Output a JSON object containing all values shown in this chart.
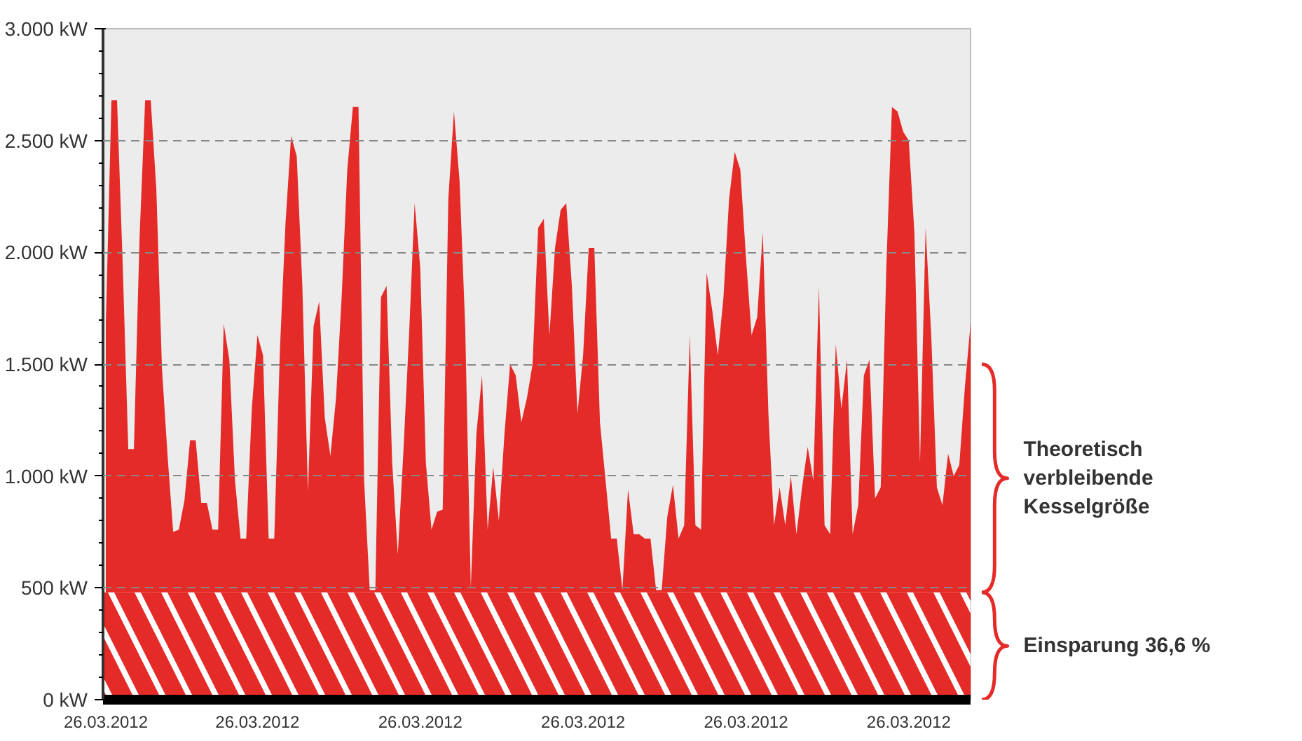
{
  "chart_data": {
    "type": "area",
    "color": "#e52b28",
    "categories": [
      "26.03.2012",
      null,
      null,
      null,
      null,
      null,
      null,
      null,
      null,
      null,
      null,
      null,
      null,
      null,
      null,
      null,
      null,
      null,
      null,
      null,
      null,
      null,
      null,
      null,
      null,
      null,
      null,
      "26.03.2012",
      null,
      null,
      null,
      null,
      null,
      null,
      null,
      null,
      null,
      null,
      null,
      null,
      null,
      null,
      null,
      null,
      null,
      null,
      null,
      null,
      null,
      null,
      null,
      null,
      null,
      null,
      null,
      null,
      "26.03.2012",
      null,
      null,
      null,
      null,
      null,
      null,
      null,
      null,
      null,
      null,
      null,
      null,
      null,
      null,
      null,
      null,
      null,
      null,
      null,
      null,
      null,
      null,
      null,
      null,
      null,
      null,
      null,
      null,
      "26.03.2012",
      null,
      null,
      null,
      null,
      null,
      null,
      null,
      null,
      null,
      null,
      null,
      null,
      null,
      null,
      null,
      null,
      null,
      null,
      null,
      null,
      null,
      null,
      null,
      null,
      null,
      null,
      null,
      null,
      "26.03.2012",
      null,
      null,
      null,
      null,
      null,
      null,
      null,
      null,
      null,
      null,
      null,
      null,
      null,
      null,
      null,
      null,
      null,
      null,
      null,
      null,
      null,
      null,
      null,
      null,
      null,
      null,
      null,
      null,
      "26.03.2012",
      null,
      null,
      null,
      null,
      null,
      null,
      null,
      null,
      null,
      null,
      null
    ],
    "values": [
      1680,
      2680,
      2680,
      1950,
      1120,
      1120,
      2060,
      2680,
      2680,
      2280,
      1480,
      1090,
      750,
      760,
      890,
      1160,
      1160,
      880,
      880,
      760,
      760,
      1680,
      1520,
      980,
      720,
      720,
      1300,
      1630,
      1540,
      720,
      720,
      1560,
      2130,
      2520,
      2430,
      1850,
      930,
      1670,
      1780,
      1260,
      1090,
      1350,
      1800,
      2370,
      2650,
      2650,
      980,
      490,
      490,
      1800,
      1850,
      1060,
      650,
      1110,
      1630,
      2220,
      1930,
      1060,
      760,
      840,
      850,
      2240,
      2630,
      2320,
      1670,
      500,
      1190,
      1450,
      760,
      1040,
      800,
      1190,
      1500,
      1450,
      1240,
      1350,
      1500,
      2110,
      2150,
      1630,
      2020,
      2190,
      2220,
      1850,
      1280,
      1540,
      2020,
      2020,
      1240,
      980,
      720,
      720,
      490,
      940,
      740,
      740,
      720,
      720,
      490,
      490,
      820,
      960,
      720,
      780,
      1630,
      780,
      760,
      1910,
      1740,
      1540,
      1800,
      2240,
      2450,
      2370,
      1980,
      1630,
      1710,
      2090,
      1280,
      780,
      950,
      780,
      1000,
      740,
      950,
      1130,
      980,
      1850,
      780,
      740,
      1590,
      1300,
      1520,
      740,
      870,
      1450,
      1520,
      900,
      950,
      1930,
      2650,
      2630,
      2540,
      2500,
      2090,
      1060,
      2110,
      1630,
      950,
      870,
      1100,
      1000,
      1050,
      1400,
      1680
    ],
    "ylim": [
      0,
      3000
    ],
    "yticks": [
      {
        "value": 0,
        "label": "0 kW"
      },
      {
        "value": 500,
        "label": "500 kW"
      },
      {
        "value": 1000,
        "label": "1.000 kW"
      },
      {
        "value": 1500,
        "label": "1.500 kW"
      },
      {
        "value": 2000,
        "label": "2.000 kW"
      },
      {
        "value": 2500,
        "label": "2.500 kW"
      },
      {
        "value": 3000,
        "label": "3.000 kW"
      }
    ],
    "grid": "y",
    "line_style": "dashed",
    "bands": [
      {
        "axis": "y",
        "from": 0,
        "to": 480,
        "label": "Einsparung 36,6 %",
        "color": "#e52b28"
      }
    ],
    "annotations": [
      "Theoretisch\nverbleibende\nKesselgröße"
    ]
  }
}
